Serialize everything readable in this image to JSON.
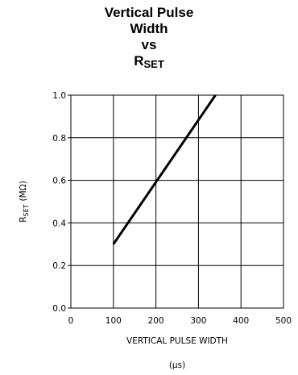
{
  "chart_data": {
    "type": "line",
    "title_lines": [
      "Vertical Pulse",
      "Width",
      "vs"
    ],
    "title_symbol": "R",
    "title_symbol_sub": "SET",
    "xlabel": "VERTICAL PULSE WIDTH",
    "xlabel_unit": "(μs)",
    "ylabel_symbol": "R",
    "ylabel_sub": "SET",
    "ylabel_unit": "(MΩ)",
    "xlim": [
      0,
      500
    ],
    "ylim": [
      0.0,
      1.0
    ],
    "x_ticks": [
      "0",
      "100",
      "200",
      "300",
      "400",
      "500"
    ],
    "y_ticks": [
      "0.0",
      "0.2",
      "0.4",
      "0.6",
      "0.8",
      "1.0"
    ],
    "grid": true,
    "series": [
      {
        "x": [
          100,
          340
        ],
        "y": [
          0.3,
          1.0
        ]
      }
    ]
  }
}
